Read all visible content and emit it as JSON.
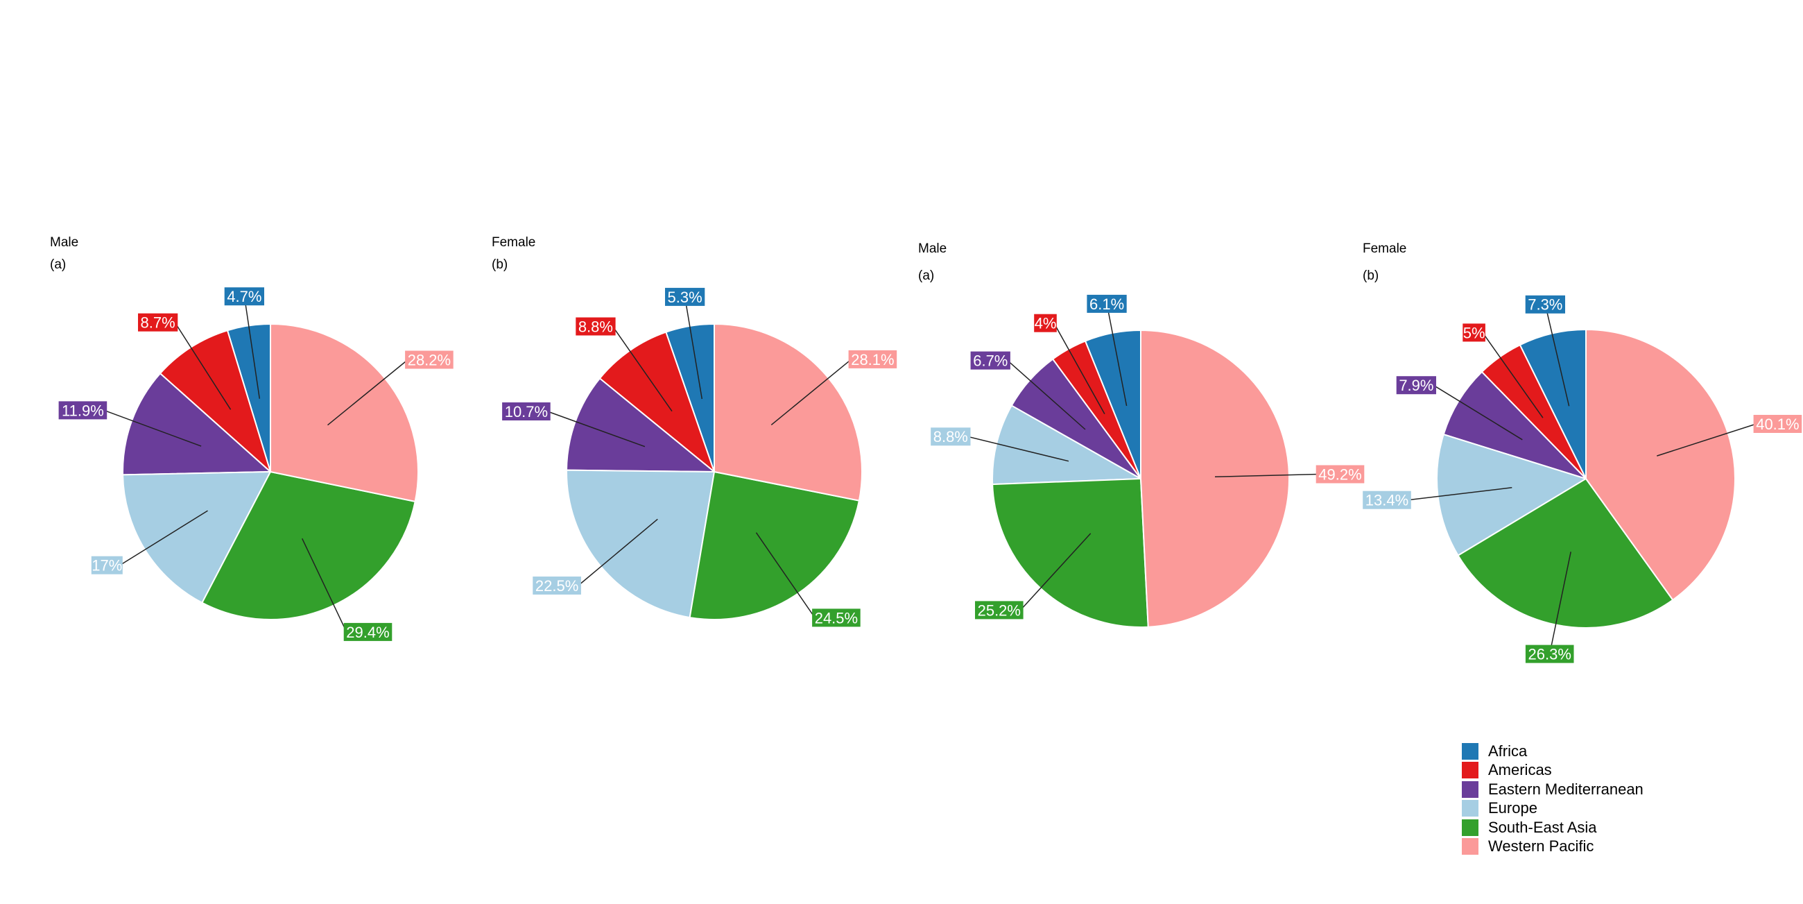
{
  "regions": [
    "Africa",
    "Americas",
    "Eastern Mediterranean",
    "Europe",
    "South-East Asia",
    "Western Pacific"
  ],
  "colors": {
    "Africa": "#1f78b4",
    "Americas": "#e31a1c",
    "Eastern Mediterranean": "#6a3d9a",
    "Europe": "#a6cee3",
    "South-East Asia": "#33a02c",
    "Western Pacific": "#fb9a99"
  },
  "panels": [
    {
      "title": "Male",
      "subtitle": "(a)"
    },
    {
      "title": "Female",
      "subtitle": "(b)"
    },
    {
      "title": "Male",
      "subtitle": "(a)"
    },
    {
      "title": "Female",
      "subtitle": "(b)"
    }
  ],
  "chart_data": [
    {
      "type": "pie",
      "title": "Male",
      "subtitle": "(a)",
      "labels": [
        "Africa",
        "Americas",
        "Eastern Mediterranean",
        "Europe",
        "South-East Asia",
        "Western Pacific"
      ],
      "values": [
        4.7,
        8.7,
        11.9,
        17,
        29.4,
        28.2
      ],
      "value_labels": [
        "4.7%",
        "8.7%",
        "11.9%",
        "17%",
        "29.4%",
        "28.2%"
      ]
    },
    {
      "type": "pie",
      "title": "Female",
      "subtitle": "(b)",
      "labels": [
        "Africa",
        "Americas",
        "Eastern Mediterranean",
        "Europe",
        "South-East Asia",
        "Western Pacific"
      ],
      "values": [
        5.3,
        8.8,
        10.7,
        22.5,
        24.5,
        28.1
      ],
      "value_labels": [
        "5.3%",
        "8.8%",
        "10.7%",
        "22.5%",
        "24.5%",
        "28.1%"
      ]
    },
    {
      "type": "pie",
      "title": "Male",
      "subtitle": "(a)",
      "labels": [
        "Africa",
        "Americas",
        "Eastern Mediterranean",
        "Europe",
        "South-East Asia",
        "Western Pacific"
      ],
      "values": [
        6.1,
        4,
        6.7,
        8.8,
        25.2,
        49.2
      ],
      "value_labels": [
        "6.1%",
        "4%",
        "6.7%",
        "8.8%",
        "25.2%",
        "49.2%"
      ]
    },
    {
      "type": "pie",
      "title": "Female",
      "subtitle": "(b)",
      "labels": [
        "Africa",
        "Americas",
        "Eastern Mediterranean",
        "Europe",
        "South-East Asia",
        "Western Pacific"
      ],
      "values": [
        7.3,
        5,
        7.9,
        13.4,
        26.3,
        40.1
      ],
      "value_labels": [
        "7.3%",
        "5%",
        "7.9%",
        "13.4%",
        "26.3%",
        "40.1%"
      ]
    }
  ]
}
